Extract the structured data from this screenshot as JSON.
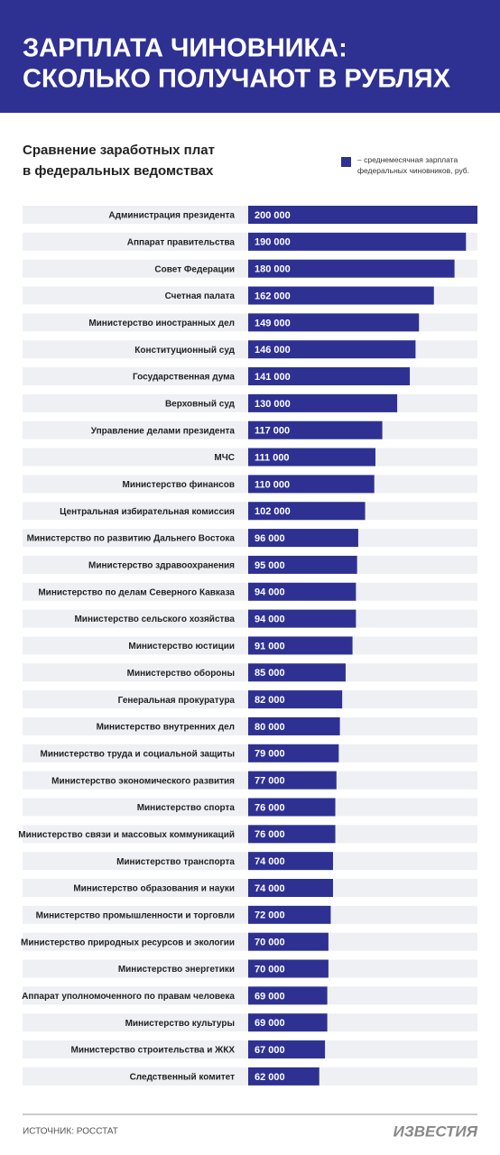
{
  "chart_data": {
    "type": "bar",
    "orientation": "horizontal",
    "title": [
      "ЗАРПЛАТА ЧИНОВНИКА:",
      "СКОЛЬКО ПОЛУЧАЮТ В РУБЛЯХ"
    ],
    "subtitle": [
      "Сравнение заработных плат",
      "в федеральных ведомствах"
    ],
    "categories": [
      "Администрация президента",
      "Аппарат правительства",
      "Совет Федерации",
      "Счетная палата",
      "Министерство иностранных дел",
      "Конституционный суд",
      "Государственная дума",
      "Верховный суд",
      "Управление делами президента",
      "МЧС",
      "Министерство финансов",
      "Центральная избирательная комиссия",
      "Министерство по развитию Дальнего Востока",
      "Министерство здравоохранения",
      "Министерство по делам Северного Кавказа",
      "Министерство сельского хозяйства",
      "Министерство юстиции",
      "Министерство обороны",
      "Генеральная прокуратура",
      "Министерство внутренних дел",
      "Министерство труда и социальной защиты",
      "Министерство экономического развития",
      "Министерство спорта",
      "Министерство связи и массовых коммуникаций",
      "Министерство транспорта",
      "Министерство образования и науки",
      "Министерство промышленности и торговли",
      "Министерство природных ресурсов и экологии",
      "Министерство энергетики",
      "Аппарат уполномоченного по правам человека",
      "Министерство культуры",
      "Министерство строительства и ЖКХ",
      "Следственный комитет"
    ],
    "series": [
      {
        "name": "– среднемесячная зарплата федеральных чиновников, руб.",
        "color": "#2e3192",
        "values": [
          200000,
          190000,
          180000,
          162000,
          149000,
          146000,
          141000,
          130000,
          117000,
          111000,
          110000,
          102000,
          96000,
          95000,
          94000,
          94000,
          91000,
          85000,
          82000,
          80000,
          79000,
          77000,
          76000,
          76000,
          74000,
          74000,
          72000,
          70000,
          70000,
          69000,
          69000,
          67000,
          62000
        ],
        "value_labels": [
          "200 000",
          "190 000",
          "180 000",
          "162 000",
          "149 000",
          "146 000",
          "141 000",
          "130 000",
          "117 000",
          "111 000",
          "110 000",
          "102 000",
          "96 000",
          "95 000",
          "94 000",
          "94 000",
          "91 000",
          "85 000",
          "82 000",
          "80 000",
          "79 000",
          "77 000",
          "76 000",
          "76 000",
          "74 000",
          "74 000",
          "72 000",
          "70 000",
          "70 000",
          "69 000",
          "69 000",
          "67 000",
          "62 000"
        ]
      }
    ],
    "source": "ИСТОЧНИК: РОССТАТ",
    "brand": "ИЗВЕСТИЯ"
  }
}
